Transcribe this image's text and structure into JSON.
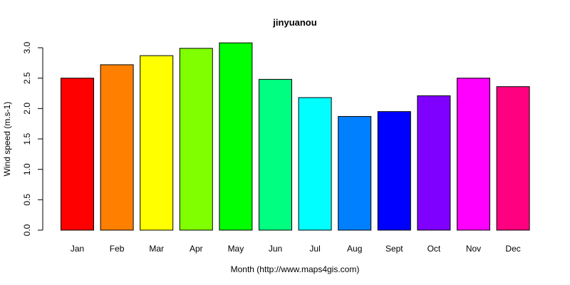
{
  "chart_data": {
    "type": "bar",
    "title": "jinyuanou",
    "xlabel": "Month (http://www.maps4gis.com)",
    "ylabel": "Wind speed (m.s-1)",
    "categories": [
      "Jan",
      "Feb",
      "Mar",
      "Apr",
      "May",
      "Jun",
      "Jul",
      "Aug",
      "Sept",
      "Oct",
      "Nov",
      "Dec"
    ],
    "values": [
      2.5,
      2.72,
      2.87,
      2.99,
      3.08,
      2.48,
      2.18,
      1.87,
      1.95,
      2.21,
      2.5,
      2.36
    ],
    "colors": [
      "#ff0000",
      "#ff8000",
      "#ffff00",
      "#80ff00",
      "#00ff00",
      "#00ff80",
      "#00ffff",
      "#0080ff",
      "#0000ff",
      "#8000ff",
      "#ff00ff",
      "#ff0080"
    ],
    "yticks": [
      "0.0",
      "0.5",
      "1.0",
      "1.5",
      "2.0",
      "2.5",
      "3.0"
    ],
    "ylim": [
      0,
      3.1
    ],
    "grid": false,
    "legend": "none"
  }
}
